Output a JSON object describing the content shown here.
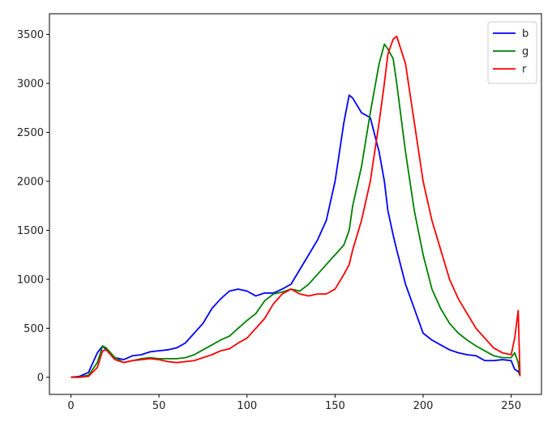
{
  "chart_data": {
    "type": "line",
    "x": [
      0,
      5,
      10,
      15,
      18,
      20,
      25,
      30,
      35,
      40,
      45,
      50,
      55,
      60,
      65,
      70,
      75,
      80,
      85,
      90,
      95,
      100,
      105,
      110,
      115,
      120,
      125,
      130,
      135,
      140,
      145,
      150,
      155,
      158,
      160,
      165,
      170,
      175,
      178,
      180,
      183,
      185,
      190,
      195,
      200,
      205,
      210,
      215,
      220,
      225,
      230,
      235,
      240,
      245,
      250,
      252,
      254,
      255
    ],
    "series": [
      {
        "name": "b",
        "color": "#0000ff",
        "values": [
          0,
          10,
          50,
          250,
          320,
          280,
          200,
          180,
          220,
          230,
          260,
          270,
          280,
          300,
          350,
          450,
          550,
          700,
          800,
          880,
          900,
          880,
          830,
          860,
          860,
          900,
          950,
          1100,
          1250,
          1400,
          1600,
          2000,
          2600,
          2880,
          2850,
          2700,
          2650,
          2300,
          2000,
          1700,
          1450,
          1300,
          950,
          700,
          450,
          380,
          330,
          280,
          250,
          230,
          220,
          170,
          170,
          180,
          170,
          80,
          60,
          20
        ]
      },
      {
        "name": "g",
        "color": "#008000",
        "values": [
          0,
          5,
          20,
          150,
          320,
          300,
          200,
          150,
          170,
          190,
          200,
          190,
          190,
          190,
          200,
          230,
          280,
          330,
          380,
          420,
          500,
          580,
          650,
          780,
          850,
          870,
          900,
          880,
          950,
          1050,
          1150,
          1250,
          1350,
          1500,
          1750,
          2150,
          2700,
          3200,
          3400,
          3350,
          3250,
          3000,
          2300,
          1700,
          1250,
          900,
          700,
          550,
          450,
          380,
          320,
          270,
          220,
          200,
          200,
          250,
          150,
          10
        ]
      },
      {
        "name": "r",
        "color": "#ff0000",
        "values": [
          0,
          0,
          10,
          100,
          270,
          280,
          180,
          150,
          170,
          180,
          190,
          180,
          160,
          150,
          160,
          170,
          200,
          230,
          270,
          290,
          350,
          400,
          500,
          600,
          750,
          850,
          900,
          850,
          830,
          850,
          850,
          900,
          1050,
          1150,
          1300,
          1600,
          2000,
          2600,
          3000,
          3300,
          3450,
          3480,
          3200,
          2600,
          2000,
          1600,
          1300,
          1000,
          800,
          650,
          500,
          400,
          300,
          250,
          230,
          400,
          680,
          20
        ]
      }
    ],
    "xlim": [
      -12.2,
      267.2
    ],
    "ylim": [
      -175,
      3710
    ],
    "xticks": [
      0,
      50,
      100,
      150,
      200,
      250
    ],
    "yticks": [
      0,
      500,
      1000,
      1500,
      2000,
      2500,
      3000,
      3500
    ],
    "legend": "upper right"
  }
}
